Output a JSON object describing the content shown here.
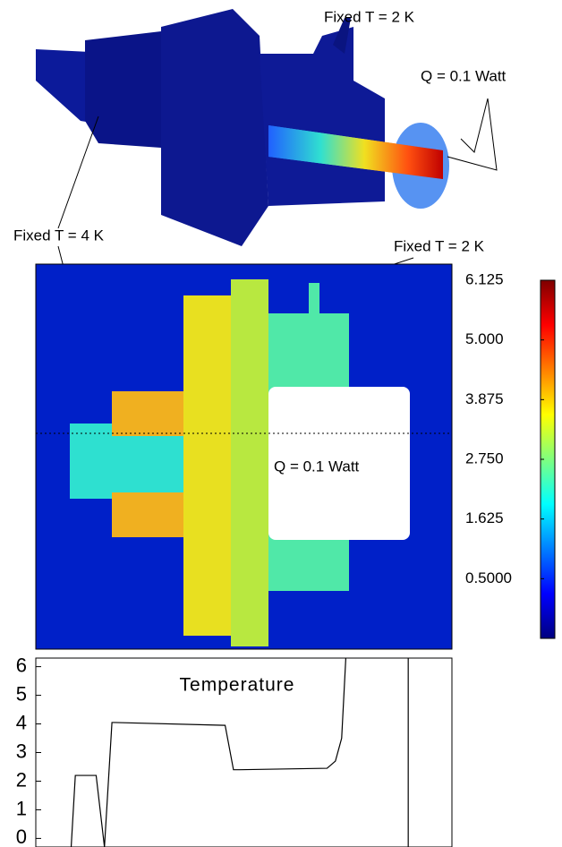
{
  "annotations": {
    "fixed_top": "Fixed T = 2 K",
    "q_top": "Q = 0.1 Watt",
    "fixed_left": "Fixed T = 4 K",
    "fixed_mid": "Fixed T = 2 K",
    "q_mid": "Q = 0.1 Watt"
  },
  "chart_data": [
    {
      "type": "heatmap",
      "colormap": "jet",
      "colorbar": {
        "clim": [
          -0.625,
          6.125
        ],
        "ticks": [
          6.125,
          {
            "value": 5,
            "label": "5.000"
          },
          3.875,
          {
            "value": 2.75,
            "label": "2.750"
          },
          1.625,
          {
            "value": 0.5,
            "label": "0.5000"
          }
        ]
      }
    },
    {
      "type": "line",
      "title": "Temperature",
      "xlim": [
        0,
        1
      ],
      "ylim": [
        -0.3,
        6.3
      ],
      "yticks": [
        0,
        1,
        2,
        3,
        4,
        5,
        6
      ],
      "x": [
        0.085,
        0.095,
        0.145,
        0.165,
        0.183,
        0.19,
        0.455,
        0.475,
        0.49,
        0.7,
        0.72,
        0.735,
        0.745,
        0.8,
        0.895,
        0.895
      ],
      "series": [
        {
          "color": "#000000",
          "values": [
            -0.3,
            2.2,
            2.2,
            -0.3,
            4.05,
            4.05,
            3.95,
            2.4,
            2.4,
            2.45,
            2.7,
            3.5,
            6.3,
            null,
            6.3,
            -0.3
          ]
        }
      ]
    }
  ]
}
